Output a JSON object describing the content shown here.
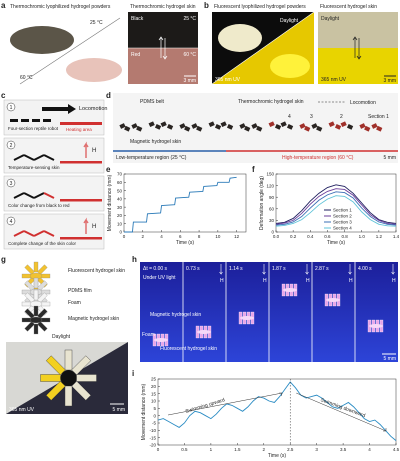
{
  "panels": {
    "a": {
      "label": "a",
      "title": "Thermochromic lyophilized hydrogel powders",
      "powder_low": "25 °C",
      "powder_high": "60 °C",
      "skin_title": "Thermochromic hydrogel skin",
      "skin_labels": [
        "Black",
        "25 °C",
        "Red",
        "60 °C"
      ],
      "scale": "3 mm"
    },
    "b": {
      "label": "b",
      "title": "Fluorescent lyophilized hydrogel powders",
      "powder_labels": [
        "Daylight",
        "365 nm UV"
      ],
      "skin_title": "Fluorescent hydrogel skin",
      "skin_labels": [
        "Daylight",
        "365 nm UV"
      ],
      "scale": "3 mm"
    },
    "c": {
      "label": "c",
      "steps": [
        {
          "number": "1",
          "texts": [
            "Locomotion",
            "Four-section reptile robot",
            "Heating area"
          ]
        },
        {
          "number": "2",
          "texts": [
            "Temperature-sensing skin",
            "H"
          ]
        },
        {
          "number": "3",
          "texts": [
            "Color change from black to red"
          ]
        },
        {
          "number": "4",
          "texts": [
            "Complete change of the skin color",
            "H"
          ]
        }
      ]
    },
    "d": {
      "label": "d",
      "labels": [
        "PDMS belt",
        "Thermochromic hydrogel skin",
        "Locomotion",
        "Magnetic hydrogel skin",
        "4",
        "3",
        "2",
        "Section 1",
        "Low-temperature region (25 °C)",
        "High-temperature region (60 °C)"
      ],
      "scale": "5 mm"
    },
    "e": {
      "label": "e"
    },
    "f": {
      "label": "f"
    },
    "g": {
      "label": "g",
      "labels": [
        "Fluorescent hydrogel skin",
        "PDMS film",
        "Foam",
        "Magnetic hydrogel skin"
      ],
      "photo_labels": [
        "Daylight",
        "365 nm UV"
      ],
      "scale": "5 mm"
    },
    "h": {
      "label": "h",
      "times": [
        "Δt = 0.00 s",
        "0.73 s",
        "1.14 s",
        "1.87 s",
        "2.87 s",
        "4.00 s"
      ],
      "condition": "Under UV light",
      "field": "H",
      "labels": [
        "Magnetic hydrogel skin",
        "Foam",
        "Fluorescent hydrogel skin"
      ],
      "scale": "5 mm"
    },
    "i": {
      "label": "i"
    }
  },
  "chart_data": [
    {
      "type": "line",
      "xlabel": "Time (s)",
      "ylabel": "Movement distance (mm)",
      "x": [
        0,
        0.9,
        1.0,
        2.4,
        2.5,
        3.9,
        4.0,
        5.4,
        5.5,
        6.9,
        7.0,
        8.4,
        8.5,
        9.9,
        10.0,
        11.2,
        11.3,
        12.0
      ],
      "values": [
        0,
        0,
        12,
        12,
        22,
        23,
        32,
        33,
        41,
        42,
        48,
        49,
        55,
        56,
        60,
        60,
        65,
        66
      ],
      "color": "#2a7ab8",
      "xlim": [
        0,
        13
      ],
      "xticks": [
        0,
        2,
        4,
        6,
        8,
        10,
        12
      ],
      "ylim": [
        0,
        70
      ],
      "yticks": [
        0,
        10,
        20,
        30,
        40,
        50,
        60,
        70
      ]
    },
    {
      "type": "line",
      "xlabel": "Time (s)",
      "ylabel": "Deformation angle (deg)",
      "x": [
        0,
        0.1,
        0.2,
        0.3,
        0.4,
        0.5,
        0.6,
        0.7,
        0.8,
        0.9,
        1.0,
        1.1,
        1.2,
        1.3,
        1.4
      ],
      "series": [
        {
          "name": "Section 1",
          "color": "#1f1f5f",
          "values": [
            22,
            25,
            35,
            55,
            80,
            100,
            115,
            122,
            118,
            100,
            75,
            50,
            32,
            25,
            22
          ]
        },
        {
          "name": "Section 2",
          "color": "#6a3d9a",
          "values": [
            20,
            23,
            30,
            48,
            72,
            92,
            105,
            112,
            110,
            95,
            70,
            45,
            30,
            22,
            20
          ]
        },
        {
          "name": "Section 3",
          "color": "#3b6fb6",
          "values": [
            18,
            20,
            26,
            40,
            62,
            82,
            96,
            104,
            102,
            88,
            62,
            40,
            26,
            20,
            18
          ]
        },
        {
          "name": "Section 4",
          "color": "#5fc3d8",
          "values": [
            15,
            17,
            22,
            32,
            50,
            70,
            85,
            94,
            92,
            78,
            52,
            32,
            20,
            16,
            15
          ]
        }
      ],
      "legend": "lower center",
      "xlim": [
        0,
        1.4
      ],
      "xticks": [
        {
          "value": 0,
          "label": "0.0"
        },
        0.2,
        0.4,
        0.6,
        0.8,
        {
          "value": 1,
          "label": "1.0"
        },
        1.2,
        1.4
      ],
      "ylim": [
        0,
        150
      ],
      "yticks": [
        0,
        30,
        60,
        90,
        120,
        150
      ]
    },
    {
      "type": "line",
      "xlabel": "Time (s)",
      "ylabel": "Movement distance (mm)",
      "x": [
        0,
        0.1,
        0.2,
        0.3,
        0.4,
        0.5,
        0.6,
        0.7,
        0.8,
        0.9,
        1.0,
        1.1,
        1.2,
        1.3,
        1.4,
        1.5,
        1.6,
        1.7,
        1.8,
        1.9,
        2.0,
        2.1,
        2.2,
        2.3,
        2.4,
        2.5,
        2.6,
        2.7,
        2.8,
        2.9,
        3.0,
        3.1,
        3.2,
        3.3,
        3.4,
        3.5,
        3.6,
        3.7,
        3.8,
        3.9,
        4.0,
        4.1,
        4.2,
        4.3,
        4.4,
        4.5
      ],
      "values": [
        -3,
        -2,
        -4,
        -6,
        -8,
        -5,
        0,
        3,
        2,
        0,
        -2,
        1,
        5,
        8,
        7,
        5,
        3,
        6,
        10,
        13,
        12,
        10,
        9,
        13,
        18,
        23,
        19,
        14,
        12,
        13,
        14,
        12,
        9,
        6,
        5,
        7,
        9,
        6,
        2,
        -2,
        -4,
        -3,
        -6,
        -10,
        -14,
        -17
      ],
      "color": "#2b8cc4",
      "annotations": [
        "Swimming upward",
        "Swimming downward"
      ],
      "xlim": [
        0,
        4.5
      ],
      "xticks": [
        0,
        0.5,
        1,
        1.5,
        2,
        2.5,
        3,
        3.5,
        4,
        4.5
      ],
      "ylim": [
        -20,
        25
      ],
      "yticks": [
        -20,
        -15,
        -10,
        -5,
        0,
        5,
        10,
        15,
        20,
        25
      ]
    }
  ]
}
